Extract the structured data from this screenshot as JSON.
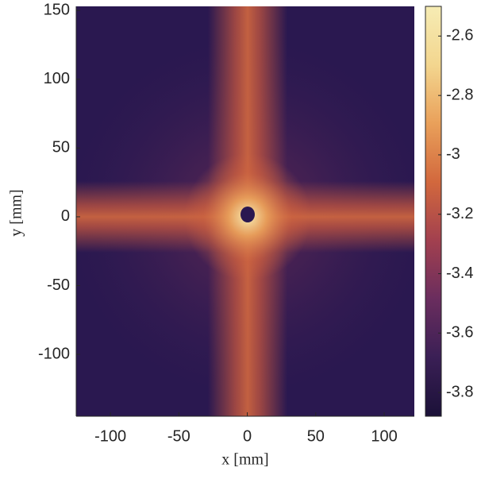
{
  "chart_data": {
    "type": "heatmap",
    "x_label": "x [mm]",
    "y_label": "y [mm]",
    "xlim": [
      -125,
      122
    ],
    "ylim": [
      -145,
      153
    ],
    "xticks": [
      -100,
      -50,
      0,
      50,
      100
    ],
    "yticks": [
      -100,
      -50,
      0,
      50,
      100,
      150
    ],
    "clim": [
      -3.88,
      -2.5
    ],
    "cticks": [
      -3.8,
      -3.6,
      -3.4,
      -3.2,
      -3,
      -2.8,
      -2.6
    ],
    "colormap": [
      "#1b1138",
      "#3a1f55",
      "#6a2d5e",
      "#a2404f",
      "#d2683d",
      "#e9a05a",
      "#f3d68f",
      "#f6ecb4"
    ]
  }
}
